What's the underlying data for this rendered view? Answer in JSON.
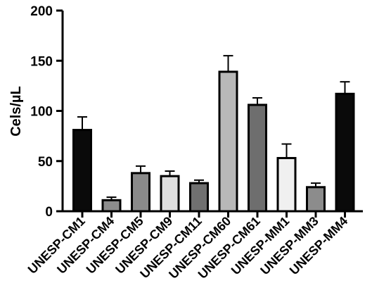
{
  "chart_data": {
    "type": "bar",
    "title": "",
    "xlabel": "",
    "ylabel": "Cels/µL",
    "ylim": [
      0,
      200
    ],
    "yticks": [
      0,
      50,
      100,
      150,
      200
    ],
    "grid": false,
    "categories": [
      "UNESP-CM1",
      "UNESP-CM4",
      "UNESP-CM5",
      "UNESP-CM9",
      "UNESP-CM11",
      "UNESP-CM60",
      "UNESP-CM61",
      "UNESP-MM1",
      "UNESP-MM3",
      "UNESP-MM4"
    ],
    "values": [
      81,
      11,
      38,
      35,
      28,
      139,
      106,
      53,
      24,
      117
    ],
    "errors": [
      13,
      3,
      7,
      5,
      3,
      16,
      7,
      14,
      4,
      12
    ],
    "bar_colors": [
      "#0a0a0a",
      "#8c8c8c",
      "#8a8a8a",
      "#dedede",
      "#707070",
      "#b8b8b8",
      "#6e6e6e",
      "#f0f0f0",
      "#8c8c8c",
      "#0a0a0a"
    ]
  }
}
